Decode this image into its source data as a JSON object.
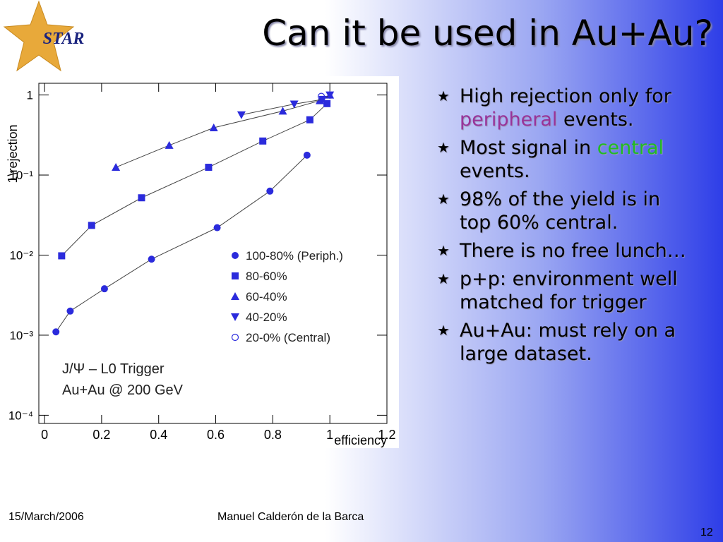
{
  "slide": {
    "logo": "STAR",
    "title": "Can it be used in Au+Au?",
    "bullets": [
      [
        {
          "text": "High rejection only for "
        },
        {
          "text": "peripheral",
          "color": "#993399"
        },
        {
          "text": " events."
        }
      ],
      [
        {
          "text": "Most signal in "
        },
        {
          "text": "central",
          "color": "#22bb22"
        },
        {
          "text": " events."
        }
      ],
      [
        {
          "text": "98% of the yield is in top 60% central."
        }
      ],
      [
        {
          "text": "There is no free lunch…"
        }
      ],
      [
        {
          "text": "p+p: environment well matched for trigger"
        }
      ],
      [
        {
          "text": "Au+Au: must rely on a large dataset."
        }
      ]
    ],
    "footer": {
      "date": "15/March/2006",
      "author": "Manuel Calderón de la Barca",
      "page": "12"
    }
  },
  "chart_data": {
    "type": "scatter",
    "x_label": "efficiency",
    "y_label": "1\\rejection",
    "annotations": [
      "J/Ψ – L0 Trigger",
      "Au+Au @ 200 GeV"
    ],
    "log_y": true,
    "xlim": [
      -0.02,
      1.2
    ],
    "ylim": [
      7.9e-05,
      1.4
    ],
    "xticks": [
      0,
      0.2,
      0.4,
      0.6,
      0.8,
      1,
      1.2
    ],
    "yticks": [
      {
        "value": 0.0001,
        "label": "10⁻⁴"
      },
      {
        "value": 0.001,
        "label": "10⁻³"
      },
      {
        "value": 0.01,
        "label": "10⁻²"
      },
      {
        "value": 0.1,
        "label": "10⁻¹"
      },
      1
    ],
    "series": [
      {
        "name": "100-80% (Periph.)",
        "color": "#2b2bdc",
        "marker": "circle",
        "line": true,
        "x": [
          0.04,
          0.09,
          0.21,
          0.375,
          0.605,
          0.79,
          0.92
        ],
        "values": [
          0.0011,
          0.002,
          0.0038,
          0.0089,
          0.022,
          0.063,
          0.177
        ]
      },
      {
        "name": "80-60%",
        "color": "#2b2bdc",
        "marker": "square",
        "line": true,
        "x": [
          0.06,
          0.165,
          0.34,
          0.575,
          0.765,
          0.93,
          0.99
        ],
        "values": [
          0.0098,
          0.0235,
          0.052,
          0.125,
          0.266,
          0.49,
          0.78
        ]
      },
      {
        "name": "60-40%",
        "color": "#2b2bdc",
        "marker": "triangle-up",
        "line": true,
        "x": [
          0.25,
          0.437,
          0.593,
          0.835,
          0.965,
          1
        ],
        "values": [
          0.125,
          0.235,
          0.39,
          0.63,
          0.85,
          1
        ]
      },
      {
        "name": "40-20%",
        "color": "#2b2bdc",
        "marker": "triangle-down",
        "line": true,
        "x": [
          0.69,
          0.875,
          0.975,
          1
        ],
        "values": [
          0.565,
          0.77,
          0.88,
          1
        ]
      },
      {
        "name": "20-0% (Central)",
        "color": "#2b2bdc",
        "marker": "open-circle",
        "line": false,
        "x": [
          0.97
        ],
        "values": [
          0.96
        ]
      }
    ]
  }
}
